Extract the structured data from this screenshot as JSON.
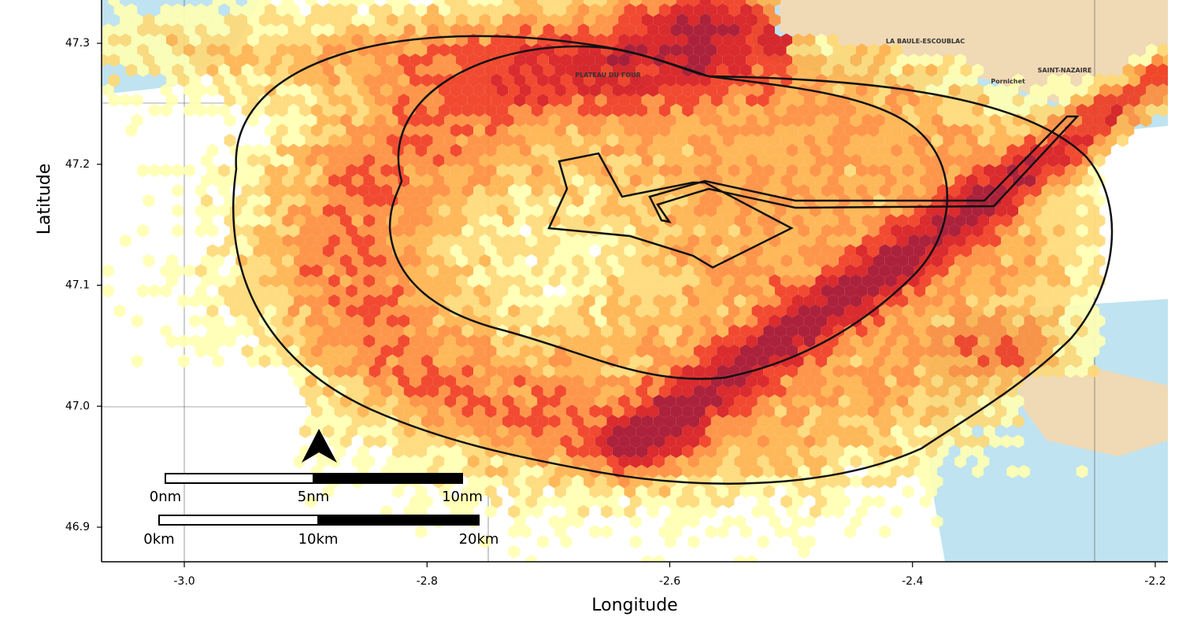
{
  "map": {
    "x_axis": {
      "title": "Longitude",
      "lim": [
        -3.0675,
        -2.1896
      ],
      "ticks": [
        {
          "value": -3,
          "label": "-3.0"
        },
        -2.8,
        -2.6,
        -2.4,
        -2.2
      ]
    },
    "y_axis": {
      "title": "Latitude",
      "lim": [
        46.8714,
        47.3358
      ],
      "ticks": [
        47.3,
        47.2,
        47.1,
        {
          "value": 47,
          "label": "47.0"
        },
        46.9
      ]
    },
    "scale_bars": [
      {
        "labels": [
          "0nm",
          "5nm",
          "10nm"
        ]
      },
      {
        "labels": [
          "0km",
          "10km",
          "20km"
        ]
      }
    ],
    "places": [
      "SAINT-NAZAIRE",
      "LA BAULE-ESCOUBLAC",
      "PLATEAU DU FOUR",
      "Pornichet"
    ]
  }
}
